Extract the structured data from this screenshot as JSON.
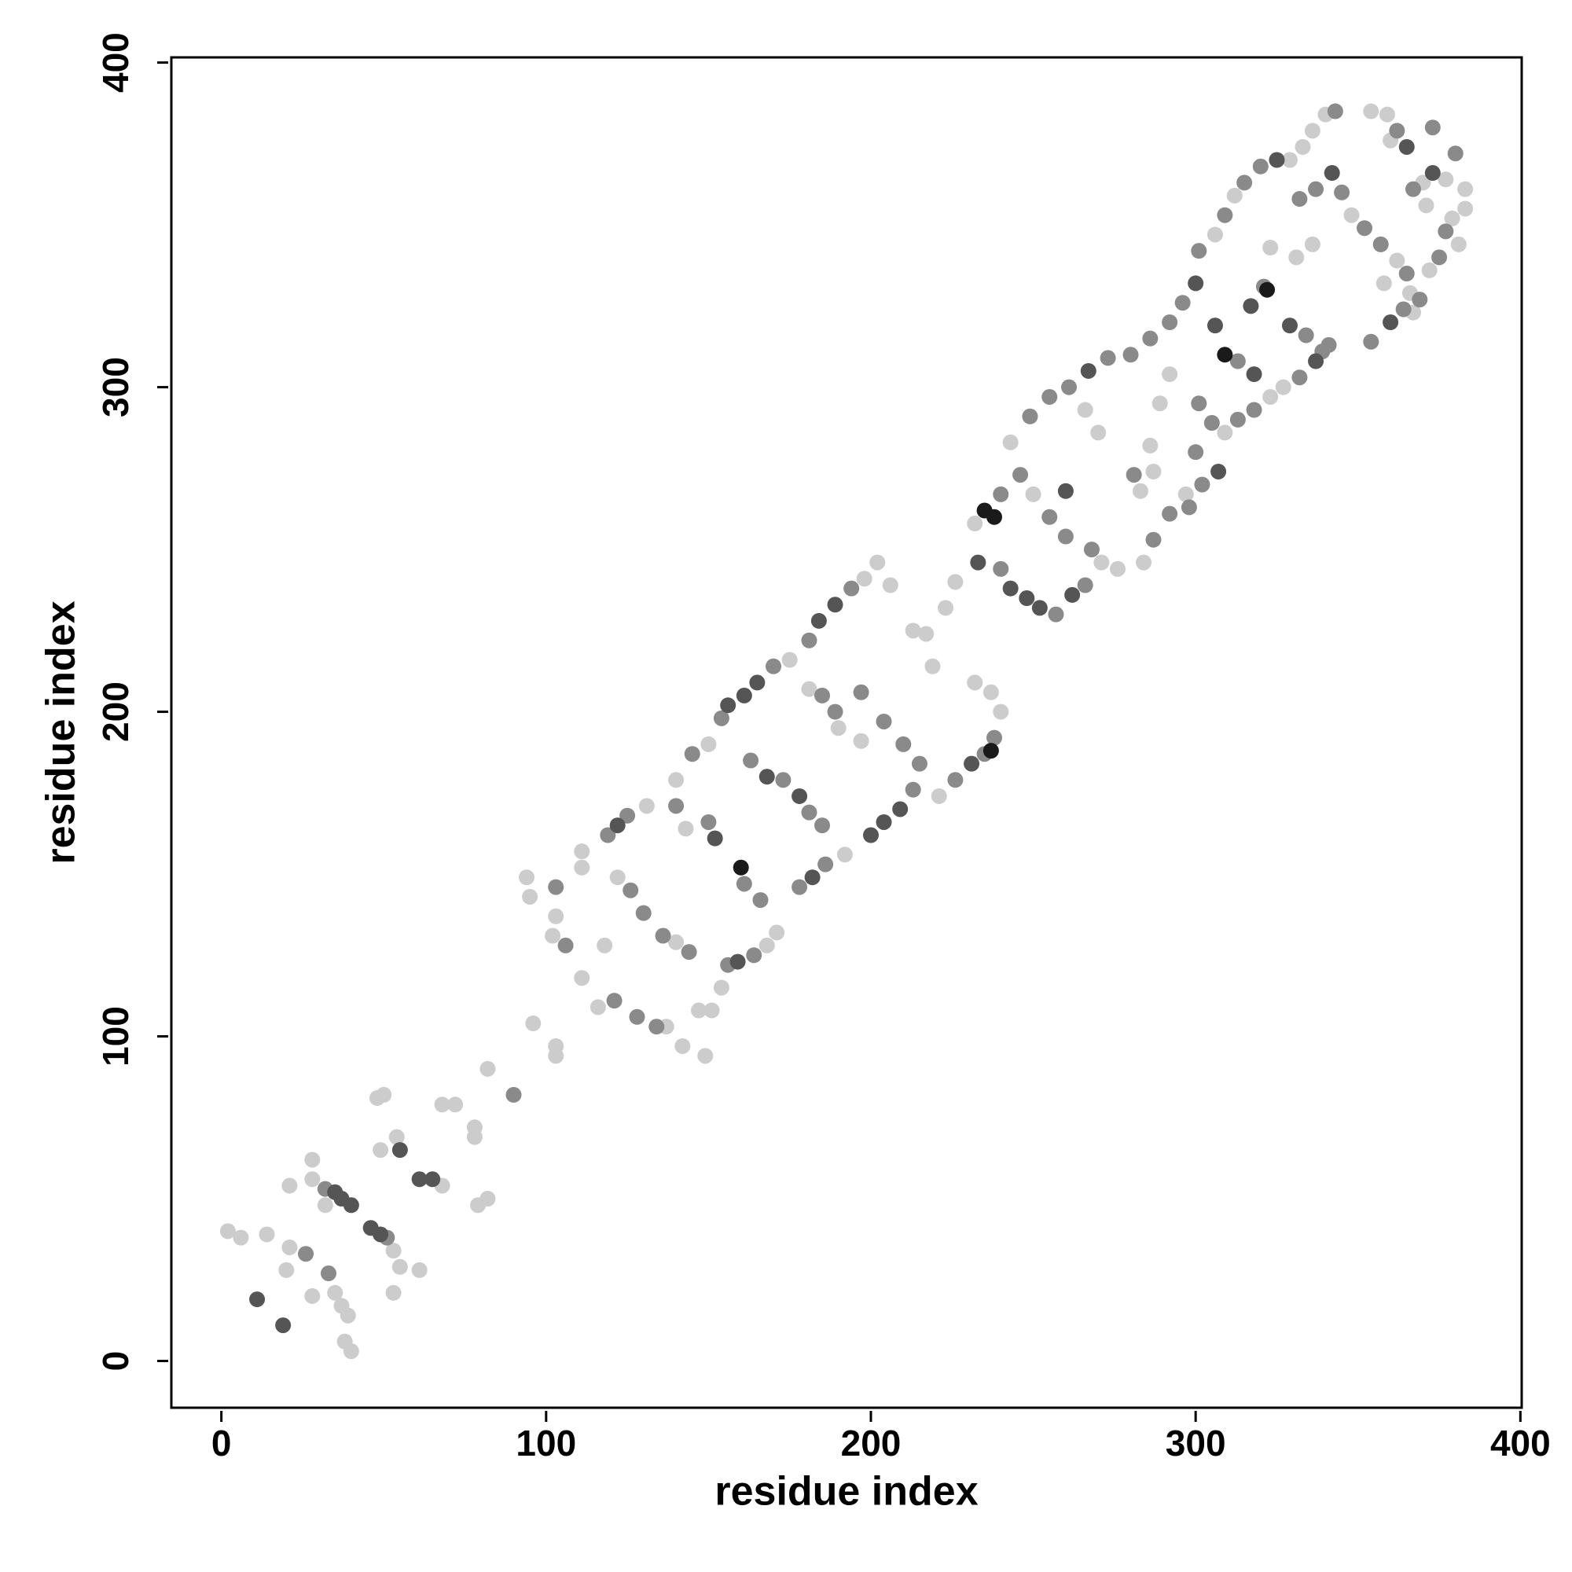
{
  "chart_data": {
    "type": "scatter",
    "xlabel": "residue index",
    "ylabel": "residue index",
    "xlim": [
      -15.4,
      400.4
    ],
    "ylim": [
      -14.4,
      401.6
    ],
    "xticks": [
      0,
      100,
      200,
      300,
      400
    ],
    "yticks": [
      0,
      100,
      200,
      300,
      400
    ],
    "series": [
      {
        "color": "#cccccc",
        "x": [
          2,
          6,
          14,
          21,
          21,
          20,
          28,
          28,
          35,
          37,
          39,
          38,
          40,
          32,
          28,
          53,
          55,
          53,
          61,
          54,
          49,
          48,
          50,
          68,
          68,
          72,
          78,
          78,
          79,
          82,
          82,
          96,
          103,
          103,
          94,
          95,
          103,
          102,
          111,
          111,
          111,
          116,
          118,
          131,
          122,
          137,
          140,
          142,
          149,
          147,
          151,
          154,
          168,
          171,
          143,
          140,
          150,
          175,
          192,
          181,
          190,
          198,
          202,
          206,
          197,
          213,
          217,
          219,
          223,
          226,
          221,
          240,
          237,
          232,
          232,
          250,
          243,
          266,
          270,
          271,
          276,
          283,
          287,
          286,
          289,
          292,
          297,
          284,
          309,
          323,
          327,
          306,
          312,
          329,
          333,
          336,
          340,
          323,
          331,
          336,
          348,
          362,
          358,
          366,
          354,
          359,
          360,
          371,
          377,
          383,
          383,
          381,
          372,
          367,
          379,
          370
        ],
        "y": [
          40,
          38,
          39,
          54,
          35,
          28,
          62,
          20,
          21,
          17,
          14,
          6,
          3,
          48,
          56,
          34,
          29,
          21,
          28,
          69,
          65,
          81,
          82,
          54,
          79,
          79,
          72,
          69,
          48,
          50,
          90,
          104,
          97,
          94,
          149,
          143,
          137,
          131,
          118,
          152,
          157,
          109,
          128,
          171,
          149,
          103,
          129,
          97,
          94,
          108,
          108,
          115,
          128,
          132,
          164,
          179,
          190,
          216,
          156,
          207,
          195,
          241,
          246,
          239,
          191,
          225,
          224,
          214,
          232,
          240,
          174,
          200,
          206,
          209,
          258,
          267,
          283,
          293,
          286,
          246,
          244,
          268,
          274,
          282,
          295,
          304,
          267,
          246,
          286,
          297,
          300,
          347,
          359,
          370,
          374,
          379,
          384,
          343,
          340,
          344,
          353,
          339,
          332,
          329,
          385,
          384,
          376,
          356,
          364,
          361,
          355,
          344,
          336,
          323,
          352,
          363
        ]
      },
      {
        "color": "#8a8a8a",
        "x": [
          26,
          33,
          32,
          51,
          90,
          103,
          106,
          121,
          119,
          125,
          126,
          130,
          128,
          134,
          136,
          144,
          156,
          164,
          166,
          161,
          150,
          140,
          145,
          154,
          170,
          163,
          173,
          181,
          185,
          178,
          186,
          185,
          189,
          197,
          181,
          194,
          204,
          213,
          215,
          210,
          226,
          235,
          238,
          240,
          257,
          266,
          268,
          260,
          255,
          246,
          240,
          249,
          255,
          261,
          273,
          281,
          280,
          286,
          292,
          296,
          301,
          305,
          300,
          292,
          287,
          298,
          302,
          313,
          318,
          332,
          341,
          313,
          321,
          334,
          339,
          301,
          309,
          315,
          320,
          343,
          332,
          337,
          345,
          352,
          357,
          365,
          354,
          364,
          362,
          373,
          380,
          375,
          369,
          377,
          367
        ],
        "y": [
          33,
          27,
          53,
          38,
          82,
          146,
          128,
          111,
          162,
          168,
          145,
          138,
          106,
          103,
          131,
          126,
          122,
          125,
          142,
          147,
          166,
          171,
          187,
          198,
          214,
          185,
          179,
          169,
          165,
          146,
          153,
          205,
          200,
          206,
          222,
          238,
          197,
          176,
          184,
          190,
          179,
          187,
          192,
          244,
          230,
          239,
          250,
          254,
          260,
          273,
          267,
          291,
          297,
          300,
          309,
          273,
          310,
          315,
          320,
          326,
          295,
          289,
          280,
          261,
          253,
          263,
          270,
          290,
          293,
          303,
          313,
          308,
          331,
          316,
          311,
          342,
          353,
          363,
          368,
          385,
          358,
          361,
          360,
          349,
          344,
          335,
          314,
          324,
          379,
          380,
          372,
          340,
          327,
          348,
          361
        ]
      },
      {
        "color": "#555555",
        "x": [
          11,
          19,
          35,
          37,
          40,
          46,
          49,
          55,
          61,
          65,
          122,
          159,
          152,
          156,
          161,
          165,
          168,
          178,
          182,
          184,
          189,
          200,
          204,
          209,
          231,
          233,
          243,
          248,
          252,
          262,
          260,
          267,
          300,
          307,
          306,
          318,
          317,
          329,
          337,
          325,
          342,
          360,
          365,
          373
        ],
        "y": [
          19,
          11,
          52,
          50,
          48,
          41,
          39,
          65,
          56,
          56,
          165,
          123,
          161,
          202,
          205,
          209,
          180,
          174,
          149,
          228,
          233,
          162,
          166,
          170,
          184,
          246,
          238,
          235,
          232,
          236,
          268,
          305,
          332,
          274,
          319,
          304,
          325,
          319,
          308,
          370,
          366,
          320,
          374,
          366
        ]
      },
      {
        "color": "#1a1a1a",
        "x": [
          235,
          238,
          322,
          237,
          160,
          309
        ],
        "y": [
          262,
          260,
          330,
          188,
          152,
          310
        ]
      }
    ]
  }
}
